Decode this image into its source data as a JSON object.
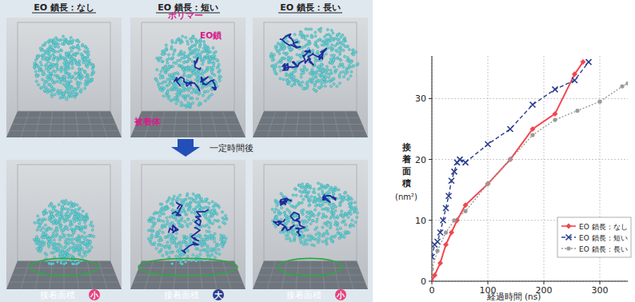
{
  "diagram": {
    "columns": [
      {
        "header": "EO 鎖長：なし",
        "result_label": "接着面積",
        "result": "小"
      },
      {
        "header": "EO 鎖長：短い",
        "result_label": "接着面積",
        "result": "大"
      },
      {
        "header": "EO 鎖長：長い",
        "result_label": "接着面積",
        "result": "小"
      }
    ],
    "labels": {
      "polymer": "ポリマー",
      "eo_chain": "EO鎖",
      "adherend": "被着体"
    },
    "arrow_label": "一定時間後"
  },
  "chart_data": {
    "type": "line",
    "x_label": "経過時間 (ns)",
    "y_label": "接着面積 (nm²)",
    "xlim": [
      0,
      350
    ],
    "ylim": [
      0,
      37
    ],
    "xticks": [
      0,
      100,
      200,
      300
    ],
    "yticks": [
      0,
      10,
      20,
      30
    ],
    "grid": true,
    "legend": "bottom-right",
    "series": [
      {
        "name": "EO 鎖長：なし",
        "color": "#f0474f",
        "marker": "diamond",
        "line_style": "solid",
        "x": [
          0,
          5,
          15,
          25,
          35,
          45,
          60,
          100,
          140,
          180,
          220,
          255,
          270
        ],
        "values": [
          0,
          1,
          3,
          6,
          8,
          10,
          12.5,
          16,
          20,
          25,
          27.5,
          34,
          36
        ]
      },
      {
        "name": "EO 鎖長：短い",
        "color": "#2b3f8f",
        "marker": "x",
        "line_style": "dashed",
        "x": [
          0,
          5,
          10,
          15,
          20,
          25,
          30,
          35,
          40,
          45,
          50,
          60,
          100,
          140,
          180,
          220,
          255,
          280
        ],
        "values": [
          4,
          6,
          6.5,
          8,
          10,
          12,
          14,
          16.5,
          18,
          19.5,
          20,
          19.5,
          22.5,
          25,
          29,
          31.5,
          33,
          36
        ]
      },
      {
        "name": "EO 鎖長：長い",
        "color": "#9a9a9a",
        "marker": "circle",
        "line_style": "dotted",
        "x": [
          0,
          10,
          25,
          40,
          60,
          100,
          140,
          180,
          220,
          260,
          300,
          340,
          350
        ],
        "values": [
          2,
          5,
          8,
          10,
          11.5,
          16,
          20,
          24,
          26.5,
          28,
          29.5,
          32,
          32.5
        ]
      }
    ]
  }
}
